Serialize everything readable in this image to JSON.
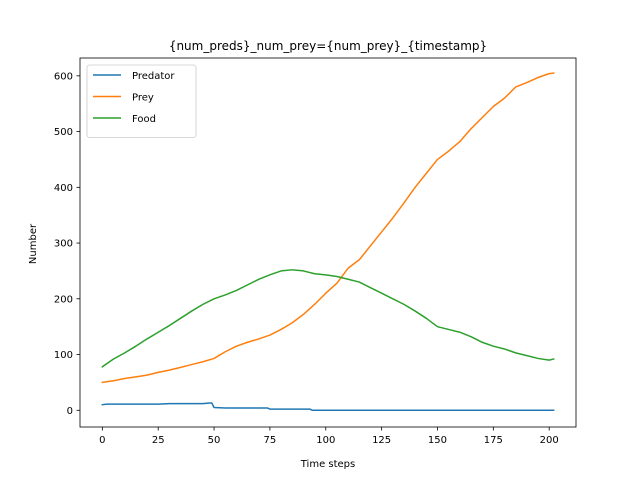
{
  "chart_data": {
    "type": "line",
    "title": "{num_preds}_num_prey={num_prey}_{timestamp}",
    "xlabel": "Time steps",
    "ylabel": "Number",
    "xlim": [
      -10,
      212
    ],
    "ylim": [
      -30,
      632
    ],
    "xticks": [
      0,
      25,
      50,
      75,
      100,
      125,
      150,
      175,
      200
    ],
    "yticks": [
      0,
      100,
      200,
      300,
      400,
      500,
      600
    ],
    "grid": false,
    "legend": "top-left",
    "series": [
      {
        "name": "Predator",
        "color": "#1f77b4",
        "x": [
          0,
          2,
          10,
          20,
          25,
          30,
          40,
          45,
          48,
          49,
          50,
          55,
          60,
          70,
          74,
          75,
          80,
          90,
          93,
          94,
          100,
          110,
          120,
          150,
          180,
          200,
          202
        ],
        "y": [
          10,
          11,
          11,
          11,
          11,
          12,
          12,
          12,
          13,
          13,
          5,
          4,
          4,
          4,
          4,
          2,
          2,
          2,
          2,
          0,
          0,
          0,
          0,
          0,
          0,
          0,
          0
        ]
      },
      {
        "name": "Prey",
        "color": "#ff7f0e",
        "x": [
          0,
          5,
          10,
          15,
          20,
          25,
          30,
          35,
          40,
          45,
          50,
          55,
          60,
          65,
          70,
          75,
          80,
          85,
          90,
          95,
          100,
          105,
          110,
          115,
          120,
          125,
          130,
          135,
          140,
          145,
          150,
          155,
          160,
          165,
          170,
          175,
          180,
          185,
          190,
          195,
          200,
          202
        ],
        "y": [
          50,
          53,
          57,
          60,
          63,
          68,
          72,
          77,
          82,
          87,
          93,
          105,
          115,
          122,
          128,
          135,
          145,
          157,
          172,
          190,
          210,
          228,
          255,
          270,
          295,
          320,
          345,
          372,
          400,
          425,
          450,
          465,
          482,
          505,
          525,
          545,
          560,
          580,
          588,
          597,
          604,
          605
        ]
      },
      {
        "name": "Food",
        "color": "#2ca02c",
        "x": [
          0,
          5,
          10,
          15,
          20,
          25,
          30,
          35,
          40,
          45,
          50,
          55,
          60,
          65,
          70,
          75,
          80,
          85,
          90,
          95,
          100,
          105,
          110,
          115,
          120,
          125,
          130,
          135,
          140,
          145,
          150,
          155,
          160,
          165,
          170,
          175,
          180,
          185,
          190,
          195,
          200,
          202
        ],
        "y": [
          78,
          92,
          103,
          115,
          128,
          140,
          152,
          165,
          178,
          190,
          200,
          207,
          215,
          225,
          235,
          243,
          250,
          252,
          250,
          245,
          243,
          240,
          235,
          230,
          220,
          210,
          200,
          190,
          178,
          165,
          150,
          145,
          140,
          132,
          122,
          115,
          110,
          103,
          98,
          93,
          90,
          92
        ]
      }
    ]
  }
}
